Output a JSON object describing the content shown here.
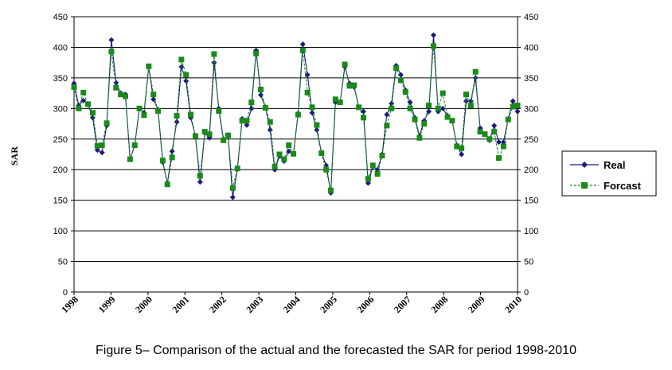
{
  "caption": "Figure 5– Comparison of the actual and the forecasted the SAR for period 1998-2010",
  "chart_data": {
    "type": "line",
    "title": "",
    "xlabel": "",
    "ylabel": "SAR",
    "ylim": [
      0,
      450
    ],
    "yticks": [
      0,
      50,
      100,
      150,
      200,
      250,
      300,
      350,
      400,
      450
    ],
    "xlim": [
      1998,
      2010
    ],
    "xticks": [
      "1998",
      "1999",
      "2000",
      "2001",
      "2002",
      "2003",
      "2004",
      "2005",
      "2006",
      "2007",
      "2008",
      "2009",
      "2010"
    ],
    "grid": true,
    "secondary_y_axis": true,
    "legend_position": "right",
    "series": [
      {
        "name": "Real",
        "color": "#1a1a7e",
        "marker": "diamond",
        "line_style": "solid",
        "values": [
          341,
          305,
          313,
          307,
          285,
          232,
          228,
          272,
          412,
          342,
          325,
          323,
          217,
          240,
          300,
          293,
          368,
          315,
          298,
          212,
          178,
          230,
          278,
          368,
          345,
          285,
          255,
          180,
          260,
          252,
          375,
          300,
          250,
          255,
          155,
          201,
          283,
          273,
          300,
          395,
          322,
          302,
          265,
          200,
          222,
          214,
          230,
          226,
          292,
          405,
          355,
          293,
          265,
          228,
          207,
          162,
          310,
          310,
          368,
          341,
          335,
          302,
          295,
          178,
          205,
          200,
          225,
          290,
          308,
          370,
          355,
          330,
          310,
          285,
          255,
          280,
          295,
          420,
          295,
          300,
          288,
          280,
          240,
          225,
          312,
          312,
          350,
          268,
          258,
          248,
          272,
          245,
          245,
          283,
          312,
          295
        ]
      },
      {
        "name": "Forcast",
        "color": "#1a8a1a",
        "marker": "square",
        "line_style": "dashed",
        "values": [
          335,
          300,
          326,
          307,
          293,
          239,
          240,
          276,
          393,
          334,
          323,
          320,
          217,
          240,
          300,
          289,
          369,
          323,
          296,
          215,
          176,
          220,
          288,
          380,
          355,
          290,
          255,
          190,
          262,
          258,
          389,
          296,
          248,
          256,
          170,
          202,
          280,
          280,
          310,
          390,
          331,
          301,
          278,
          205,
          225,
          217,
          240,
          226,
          290,
          395,
          326,
          302,
          273,
          227,
          200,
          166,
          315,
          310,
          372,
          337,
          338,
          302,
          285,
          185,
          207,
          193,
          223,
          272,
          300,
          366,
          346,
          327,
          300,
          282,
          252,
          275,
          305,
          402,
          300,
          325,
          286,
          280,
          238,
          235,
          323,
          305,
          360,
          262,
          258,
          250,
          262,
          219,
          238,
          282,
          303,
          305
        ]
      }
    ]
  }
}
